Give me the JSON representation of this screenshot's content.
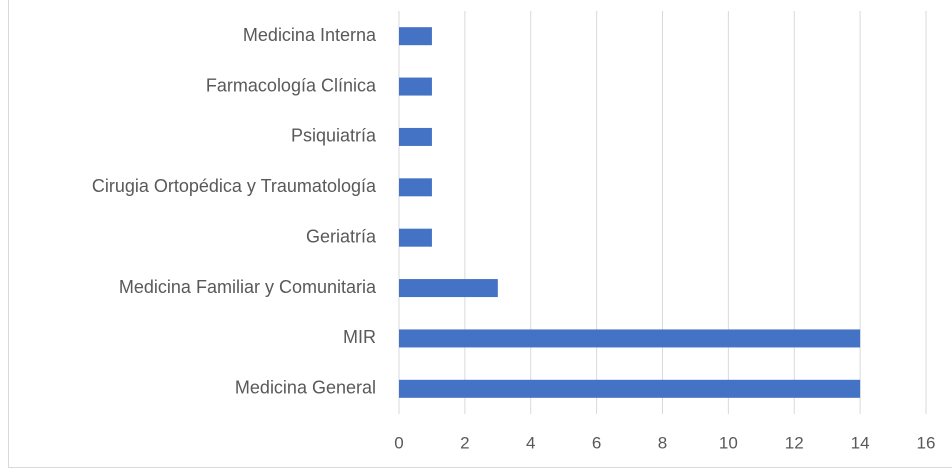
{
  "chart_data": {
    "type": "bar",
    "orientation": "horizontal",
    "categories": [
      "Medicina Interna",
      "Farmacología Clínica",
      "Psiquiatría",
      "Cirugia Ortopédica y Traumatología",
      "Geriatría",
      "Medicina Familiar y Comunitaria",
      "MIR",
      "Medicina General"
    ],
    "values": [
      1,
      1,
      1,
      1,
      1,
      3,
      14,
      14
    ],
    "color": "#4472c4",
    "xlim": [
      0,
      16
    ],
    "xticks": [
      0,
      2,
      4,
      6,
      8,
      10,
      12,
      14,
      16
    ],
    "grid": true
  }
}
